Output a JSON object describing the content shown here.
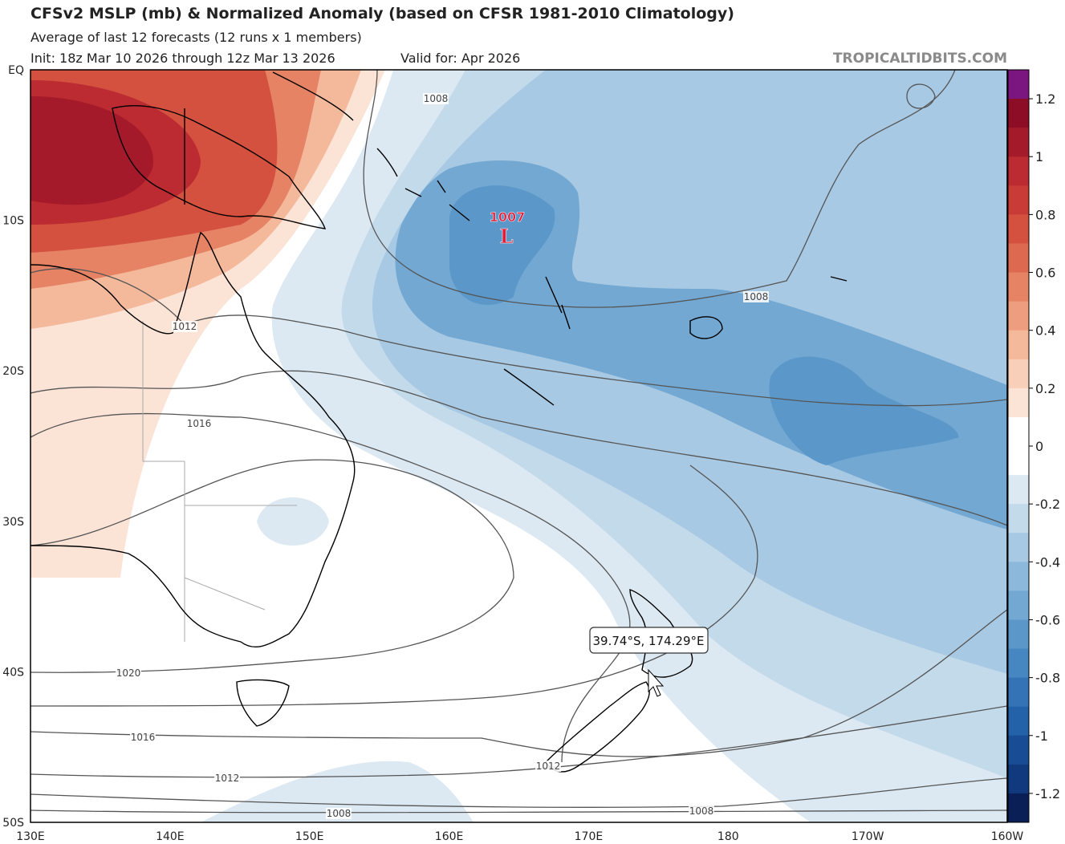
{
  "header": {
    "title": "CFSv2 MSLP (mb) & Normalized Anomaly (based on CFSR 1981-2010 Climatology)",
    "subtitle": "Average of last 12 forecasts (12 runs x 1 members)",
    "init": "Init: 18z Mar 10 2026 through 12z Mar 13 2026",
    "valid": "Valid for: Apr 2026",
    "brand": "TROPICALTIDBITS.COM"
  },
  "map": {
    "lat_labels": [
      "EQ",
      "10S",
      "20S",
      "30S",
      "40S",
      "50S"
    ],
    "lon_labels": [
      "130E",
      "140E",
      "150E",
      "160E",
      "170E",
      "180",
      "170W",
      "160W"
    ],
    "contour_labels": [
      "1008",
      "1012",
      "1016",
      "1008",
      "1020",
      "1016",
      "1012",
      "1012",
      "1008",
      "1008"
    ],
    "low": {
      "value": "1007",
      "symbol": "L"
    },
    "tooltip": "39.74°S, 174.29°E"
  },
  "colorbar": {
    "labels": [
      1.2,
      1,
      0.8,
      0.6,
      0.4,
      0.2,
      0,
      -0.2,
      -0.4,
      -0.6,
      -0.8,
      -1,
      -1.2
    ],
    "colors": [
      "#7b1580",
      "#8c0d25",
      "#a51a2a",
      "#bb2b31",
      "#c93b37",
      "#d4513f",
      "#dc6950",
      "#e58364",
      "#ee9e7e",
      "#f4b89b",
      "#f8cfb9",
      "#fbe3d6",
      "#ffffff",
      "#ffffff",
      "#dde9f2",
      "#c3daeb",
      "#a7c9e3",
      "#8cb9db",
      "#72a8d2",
      "#5b98c9",
      "#4687c1",
      "#3474b6",
      "#2361a8",
      "#184d95",
      "#103a7d",
      "#0a1f56"
    ]
  }
}
